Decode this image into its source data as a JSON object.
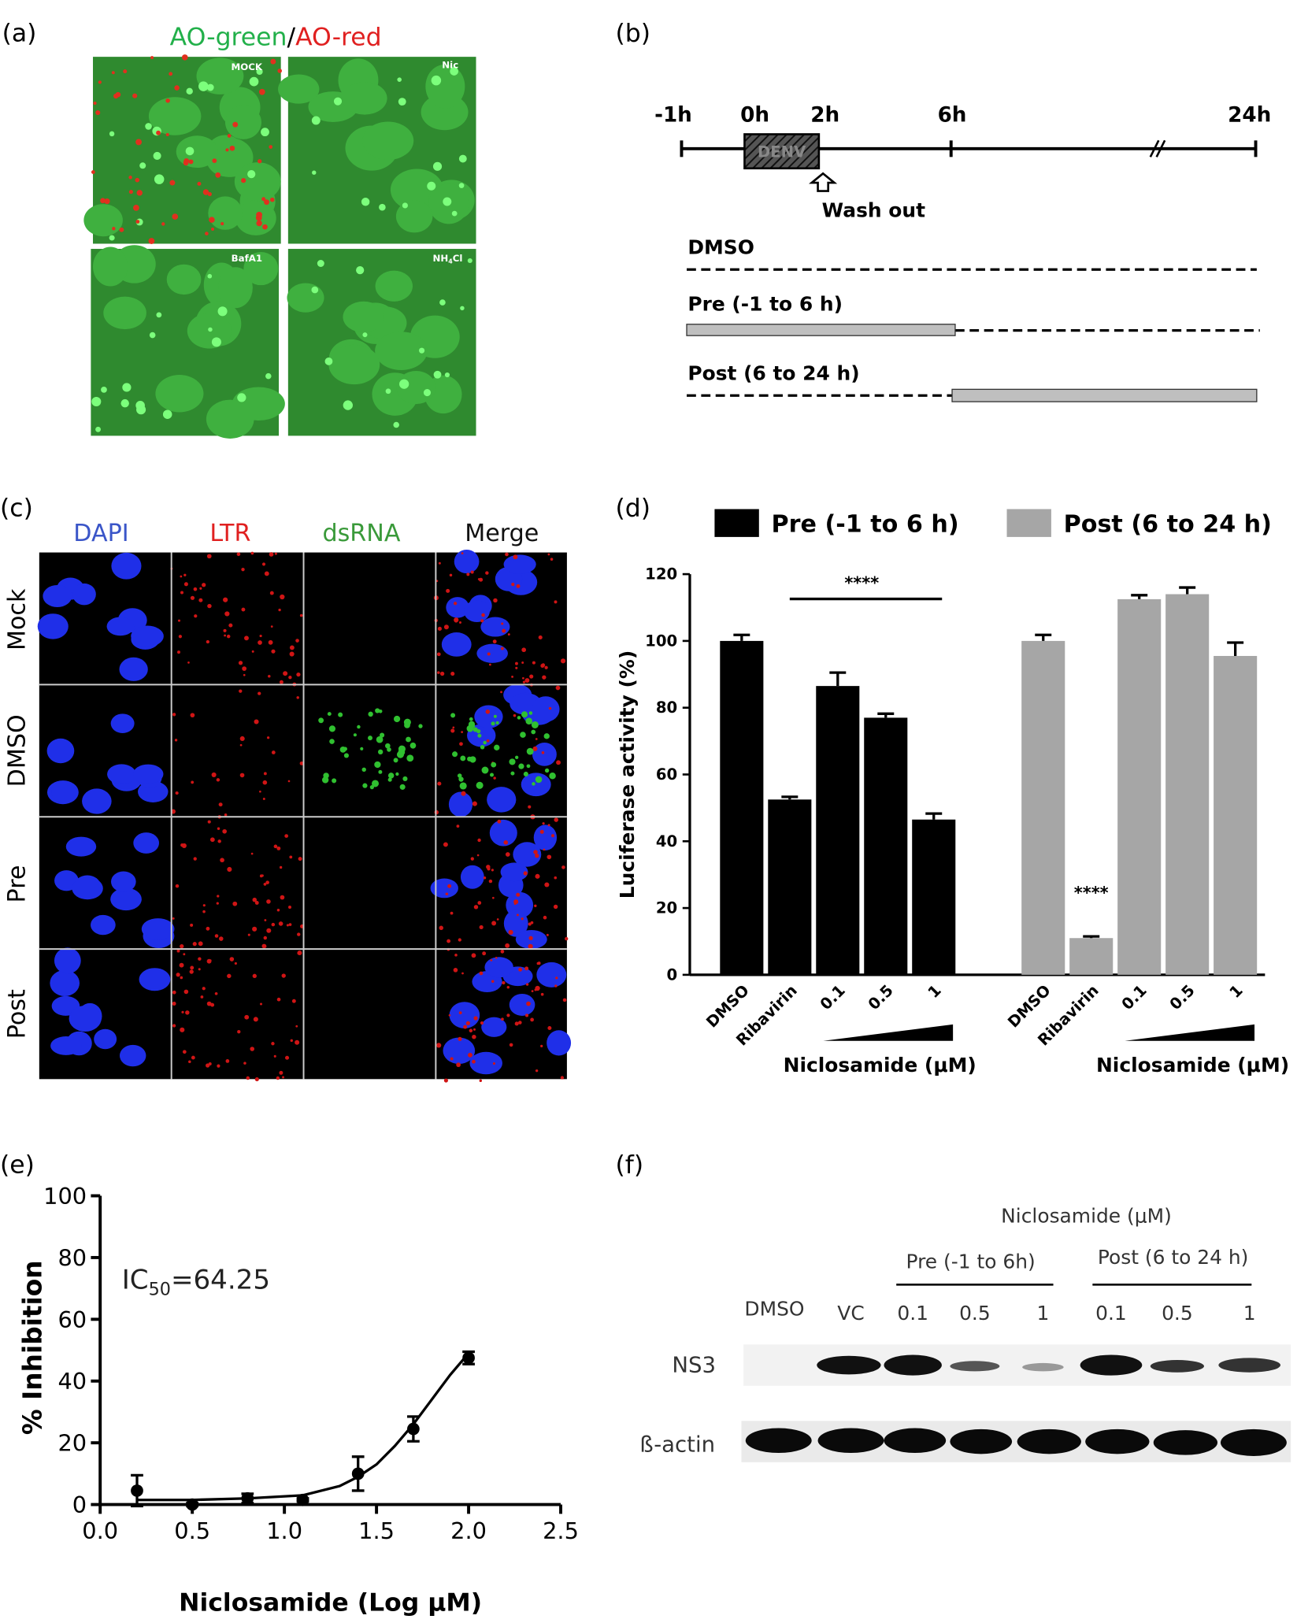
{
  "panel_a": {
    "label": "(a)",
    "title": {
      "green": "AO-green",
      "separator": "/",
      "red": "AO-red"
    },
    "images": [
      "MOCK",
      "Nic",
      "BafA1",
      {
        "main": "NH",
        "sub": "4",
        "rest": "Cl"
      }
    ]
  },
  "panel_b": {
    "label": "(b)",
    "times": [
      "-1h",
      "0h",
      "2h",
      "6h",
      "24h"
    ],
    "box": "DENV",
    "wash": "Wash out",
    "conditions": [
      "DMSO",
      "Pre (-1 to 6 h)",
      "Post (6 to 24 h)"
    ]
  },
  "panel_c": {
    "label": "(c)",
    "columns": [
      "DAPI",
      "LTR",
      "dsRNA",
      "Merge"
    ],
    "rows": [
      "Mock",
      "DMSO",
      "Pre",
      "Post"
    ]
  },
  "panel_f": {
    "label": "(f)",
    "treatment": "Niclosamide (μM)",
    "groups": [
      "Pre (-1 to 6h)",
      "Post (6 to 24 h)"
    ],
    "lanes": [
      "DMSO",
      "VC",
      "0.1",
      "0.5",
      "1",
      "0.1",
      "0.5",
      "1"
    ],
    "proteins": [
      "NS3",
      "ß-actin"
    ]
  },
  "chart_data": [
    {
      "type": "bar",
      "panel": "(d)",
      "categories": [
        "DMSO",
        "Ribavirin",
        "0.1",
        "0.5",
        "1"
      ],
      "x_label": "Niclosamide (μM)",
      "y_label": "Luciferase activity (%)",
      "series": [
        {
          "name": "Pre (-1 to 6 h)",
          "color": "#000000",
          "values": [
            100,
            52.5,
            86.5,
            77,
            46.5
          ],
          "errors": [
            1.8,
            0.8,
            4,
            1.2,
            1.8
          ]
        },
        {
          "name": "Post (6 to 24 h)",
          "color": "#a6a6a6",
          "values": [
            100,
            11,
            112.5,
            114,
            95.5
          ],
          "errors": [
            1.8,
            0.5,
            1.2,
            2,
            4
          ]
        }
      ],
      "ylim": [
        0,
        120
      ],
      "yticks": [
        0,
        20,
        40,
        60,
        80,
        100,
        120
      ],
      "annotations": [
        "****",
        "****"
      ]
    },
    {
      "type": "scatter",
      "panel": "(e)",
      "x": [
        0.2,
        0.5,
        0.8,
        1.1,
        1.4,
        1.7,
        2.0
      ],
      "values": [
        4.5,
        0,
        2,
        1.5,
        10,
        24.5,
        47.5
      ],
      "errors": [
        5,
        0.5,
        1.5,
        0.5,
        5.5,
        4,
        2
      ],
      "fit_x": [
        0.2,
        0.5,
        0.8,
        1.1,
        1.3,
        1.4,
        1.5,
        1.6,
        1.7,
        1.8,
        1.9,
        2.0
      ],
      "fit_values": [
        1.5,
        1.5,
        2,
        3,
        6,
        9,
        13,
        19,
        26,
        34,
        42,
        49
      ],
      "xlim": [
        0,
        2.5
      ],
      "xticks": [
        {
          "value": 0,
          "label": "0.0"
        },
        0.5,
        {
          "value": 1,
          "label": "1.0"
        },
        1.5,
        {
          "value": 2,
          "label": "2.0"
        },
        2.5
      ],
      "ylim": [
        0,
        100
      ],
      "yticks": [
        0,
        20,
        40,
        60,
        80,
        100
      ],
      "x_label": "Niclosamide (Log μM)",
      "y_label": "% Inhibition",
      "annotation": {
        "prefix": "IC",
        "sub": "50",
        "suffix": "=64.25"
      }
    }
  ]
}
